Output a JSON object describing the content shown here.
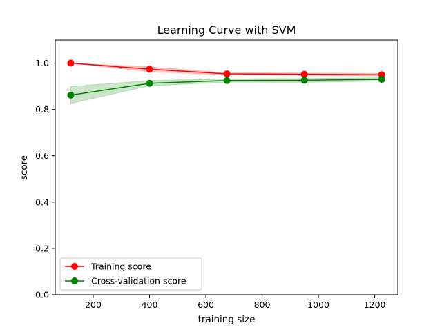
{
  "chart_data": {
    "type": "line",
    "title": "Learning Curve with SVM",
    "xlabel": "training size",
    "ylabel": "score",
    "xlim": [
      65,
      1282
    ],
    "ylim": [
      0.0,
      1.1
    ],
    "xticks": [
      200,
      400,
      600,
      800,
      1000,
      1200
    ],
    "yticks": [
      0.0,
      0.2,
      0.4,
      0.6,
      0.8,
      1.0
    ],
    "xtick_labels": [
      "200",
      "400",
      "600",
      "800",
      "1000",
      "1200"
    ],
    "ytick_labels": [
      "0.0",
      "0.2",
      "0.4",
      "0.6",
      "0.8",
      "1.0"
    ],
    "grid": false,
    "legend_position": "lower-left",
    "x": [
      120,
      400,
      675,
      950,
      1225
    ],
    "series": [
      {
        "name": "Training score",
        "color": "#ff0000",
        "marker": "circle",
        "values": [
          1.0,
          0.974,
          0.954,
          0.952,
          0.95
        ],
        "band_lower": [
          1.0,
          0.963,
          0.95,
          0.947,
          0.946
        ],
        "band_upper": [
          1.0,
          0.984,
          0.958,
          0.957,
          0.955
        ]
      },
      {
        "name": "Cross-validation score",
        "color": "#008000",
        "marker": "circle",
        "values": [
          0.862,
          0.913,
          0.925,
          0.926,
          0.93
        ],
        "band_lower": [
          0.826,
          0.902,
          0.918,
          0.917,
          0.922
        ],
        "band_upper": [
          0.899,
          0.925,
          0.932,
          0.934,
          0.937
        ]
      }
    ]
  }
}
